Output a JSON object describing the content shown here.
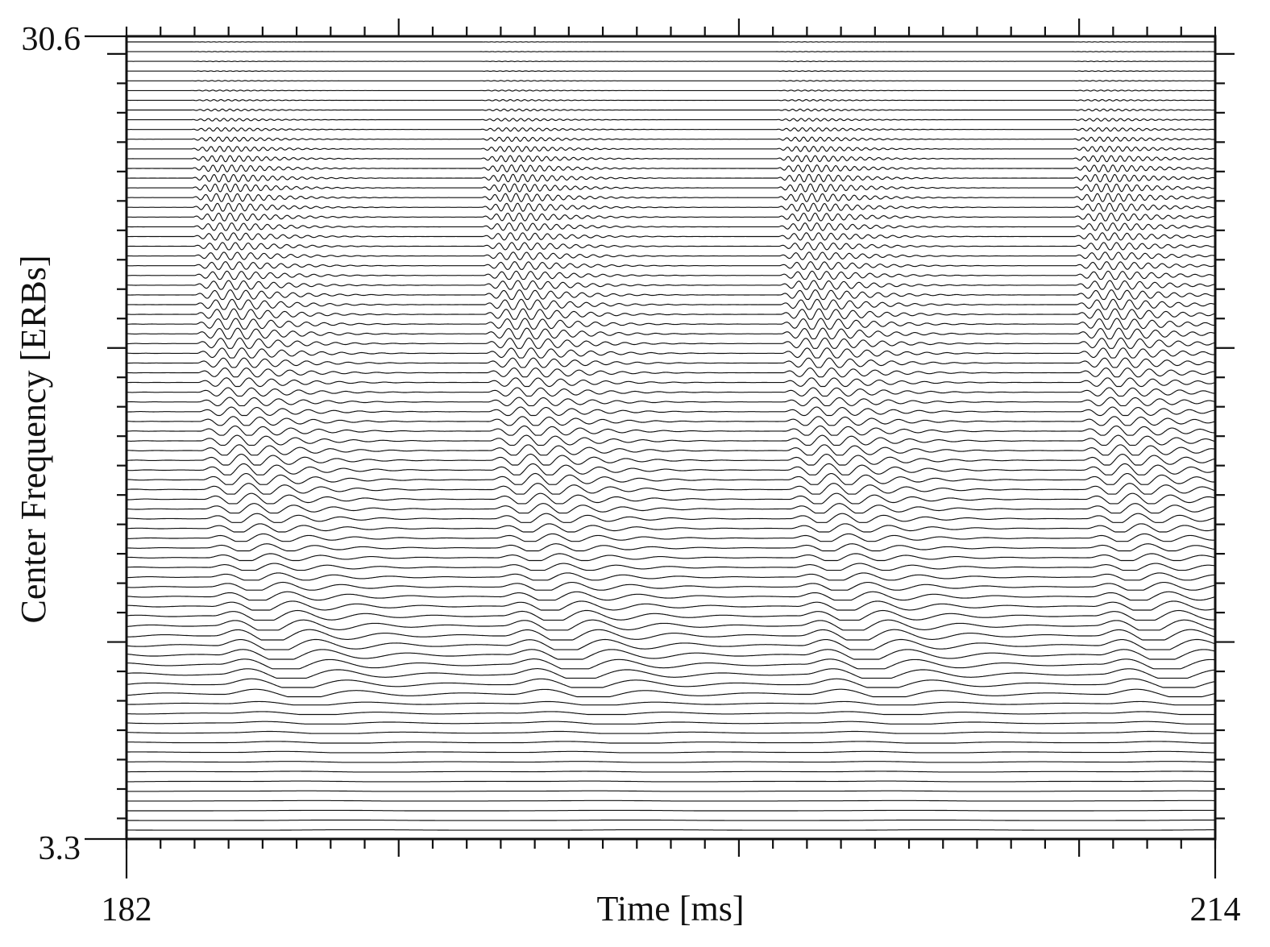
{
  "chart_data": {
    "type": "line",
    "xlabel": "Time [ms]",
    "ylabel": "Center Frequency [ERBs]",
    "xlim": [
      182,
      214
    ],
    "ylim": [
      3.3,
      30.6
    ],
    "x_tick_labels": [
      "182",
      "214"
    ],
    "y_tick_labels": [
      "30.6",
      "3.3"
    ],
    "channel_count": 82,
    "pulse_times_ms": [
      183.4,
      191.9,
      200.6,
      209.3
    ],
    "pulse_period_ms": 8.7,
    "formant_bands_erb": [
      {
        "center": 25.5,
        "label": ""
      },
      {
        "center": 20.8,
        "label": ""
      },
      {
        "center": 15.6,
        "label": ""
      },
      {
        "center": 9.8,
        "label": ""
      }
    ],
    "grid": false,
    "legend": "none"
  }
}
